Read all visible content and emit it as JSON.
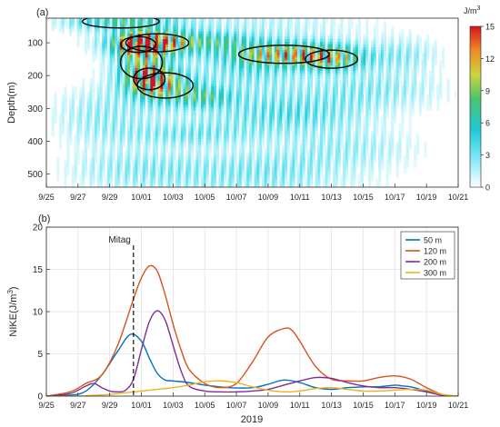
{
  "chart_data": [
    {
      "panel_label": "(a)",
      "type": "heatmap",
      "ylabel": "Depth(m)",
      "ylim": [
        540,
        25
      ],
      "yticks": [
        100,
        200,
        300,
        400,
        500
      ],
      "xticks": [
        "9/25",
        "9/27",
        "9/29",
        "10/01",
        "10/03",
        "10/05",
        "10/07",
        "10/09",
        "10/11",
        "10/13",
        "10/15",
        "10/17",
        "10/19",
        "10/21"
      ],
      "xlim_day": [
        0,
        26
      ],
      "colorbar": {
        "unit": "J/m",
        "unit_superscript": "3",
        "ticks": [
          0,
          3,
          6,
          9,
          12,
          15
        ],
        "range": [
          0,
          15
        ]
      },
      "blobs": [
        {
          "day": 4.7,
          "depth": 35,
          "value": 8,
          "w": 2.2,
          "h": 18
        },
        {
          "day": 7.0,
          "depth": 100,
          "value": 15,
          "w": 1.8,
          "h": 25
        },
        {
          "day": 5.8,
          "depth": 105,
          "value": 12,
          "w": 1.0,
          "h": 22
        },
        {
          "day": 6.5,
          "depth": 210,
          "value": 12,
          "w": 0.9,
          "h": 30
        },
        {
          "day": 7.5,
          "depth": 230,
          "value": 9,
          "w": 1.6,
          "h": 35
        },
        {
          "day": 6.0,
          "depth": 160,
          "value": 8,
          "w": 1.2,
          "h": 45
        },
        {
          "day": 15.0,
          "depth": 135,
          "value": 12,
          "w": 2.6,
          "h": 25
        },
        {
          "day": 18.0,
          "depth": 150,
          "value": 10,
          "w": 1.5,
          "h": 25
        },
        {
          "day": 10.0,
          "depth": 265,
          "value": 6,
          "w": 1.3,
          "h": 20
        },
        {
          "day": 11.0,
          "depth": 95,
          "value": 5,
          "w": 1.5,
          "h": 18
        },
        {
          "day": 9.0,
          "depth": 380,
          "value": 3.5,
          "w": 3.0,
          "h": 25
        },
        {
          "day": 15.5,
          "depth": 320,
          "value": 3.5,
          "w": 3.0,
          "h": 40
        },
        {
          "day": 19.0,
          "depth": 420,
          "value": 2.5,
          "w": 3.0,
          "h": 40
        },
        {
          "day": 20.5,
          "depth": 240,
          "value": 3.0,
          "w": 3.0,
          "h": 40
        },
        {
          "day": 13.0,
          "depth": 180,
          "value": 4.0,
          "w": 2.0,
          "h": 40
        },
        {
          "day": 6.0,
          "depth": 480,
          "value": 2.5,
          "w": 3.0,
          "h": 40
        },
        {
          "day": 14.0,
          "depth": 480,
          "value": 2.0,
          "w": 3.0,
          "h": 40
        },
        {
          "day": 3.5,
          "depth": 330,
          "value": 2.5,
          "w": 2.0,
          "h": 60
        },
        {
          "day": 22.5,
          "depth": 140,
          "value": 3.0,
          "w": 1.5,
          "h": 35
        }
      ]
    },
    {
      "panel_label": "(b)",
      "type": "line",
      "ylabel": "NIKE(J/m",
      "ylabel_superscript": "3",
      "ylabel_close": ")",
      "xlabel": "2019",
      "ylim": [
        0,
        20
      ],
      "yticks": [
        0,
        5,
        10,
        15,
        20
      ],
      "xticks": [
        "9/25",
        "9/27",
        "9/29",
        "10/01",
        "10/03",
        "10/05",
        "10/07",
        "10/09",
        "10/11",
        "10/13",
        "10/15",
        "10/17",
        "10/19",
        "10/21"
      ],
      "xlim_day": [
        0,
        26
      ],
      "annotation": {
        "label": "Mitag",
        "day": 5.5
      },
      "legend_position": "top-right",
      "series": [
        {
          "name": "50 m",
          "color": "#0072bd",
          "x": [
            0,
            1.5,
            2.5,
            3.5,
            4.5,
            5.3,
            6.0,
            6.5,
            7.0,
            7.5,
            8.0,
            9.0,
            10.0,
            11.5,
            13.0,
            14.0,
            15.0,
            16.0,
            17.0,
            18.0,
            19.0,
            20.0,
            21.0,
            22.0,
            22.5,
            23.0,
            24.0,
            25.0,
            26.0
          ],
          "y": [
            0,
            0.1,
            0.6,
            2.5,
            5.3,
            7.3,
            6.5,
            4.5,
            2.7,
            1.9,
            1.8,
            1.6,
            1.3,
            1.0,
            1.0,
            1.4,
            1.9,
            1.6,
            1.0,
            0.8,
            1.0,
            1.1,
            1.1,
            1.3,
            1.2,
            1.1,
            0.6,
            0.1,
            0
          ]
        },
        {
          "name": "120 m",
          "color": "#d95319",
          "x": [
            0,
            1.5,
            2.5,
            3.5,
            4.5,
            5.5,
            6.0,
            6.5,
            7.0,
            7.5,
            8.0,
            8.5,
            9.0,
            10.0,
            11.0,
            12.0,
            13.0,
            14.0,
            15.0,
            15.5,
            16.0,
            17.0,
            18.0,
            19.0,
            20.0,
            21.0,
            22.0,
            23.0,
            24.0,
            25.0,
            26.0
          ],
          "y": [
            0,
            0.5,
            1.5,
            2.5,
            6.0,
            11.5,
            14.0,
            15.4,
            14.8,
            12.0,
            8.5,
            5.5,
            3.2,
            1.5,
            1.0,
            1.5,
            4.0,
            7.0,
            8.0,
            7.8,
            6.5,
            3.5,
            2.0,
            1.8,
            1.8,
            2.2,
            2.4,
            2.0,
            1.0,
            0.2,
            0
          ]
        },
        {
          "name": "200 m",
          "color": "#7e2f8e",
          "x": [
            0,
            1.5,
            2.5,
            3.0,
            3.5,
            4.0,
            4.5,
            5.0,
            5.5,
            6.0,
            6.5,
            7.0,
            7.5,
            8.0,
            8.5,
            9.0,
            10.0,
            11.0,
            12.0,
            13.0,
            14.0,
            15.0,
            16.0,
            17.0,
            18.0,
            19.0,
            20.0,
            21.0,
            22.0,
            23.0,
            24.0,
            25.0,
            26.0
          ],
          "y": [
            0,
            0.3,
            1.2,
            1.5,
            1.0,
            0.6,
            0.5,
            0.7,
            2.0,
            5.5,
            8.8,
            10.1,
            9.0,
            6.0,
            3.0,
            1.2,
            0.6,
            0.5,
            0.5,
            0.6,
            0.8,
            1.3,
            1.8,
            2.2,
            2.1,
            1.6,
            1.2,
            1.0,
            1.0,
            0.8,
            0.5,
            0.1,
            0
          ]
        },
        {
          "name": "300 m",
          "color": "#edb120",
          "x": [
            0,
            2.0,
            3.0,
            4.0,
            5.0,
            6.0,
            7.0,
            8.0,
            9.0,
            10.0,
            11.0,
            12.0,
            13.0,
            14.0,
            15.0,
            16.0,
            17.0,
            18.0,
            19.0,
            20.0,
            21.0,
            22.0,
            23.0,
            24.0,
            25.0,
            26.0
          ],
          "y": [
            0,
            0.0,
            0.1,
            0.2,
            0.4,
            0.6,
            0.8,
            1.0,
            1.3,
            1.7,
            1.8,
            1.6,
            1.1,
            0.7,
            0.5,
            0.6,
            0.9,
            1.0,
            0.8,
            0.6,
            0.6,
            0.7,
            0.8,
            0.7,
            0.2,
            0
          ]
        }
      ]
    }
  ]
}
